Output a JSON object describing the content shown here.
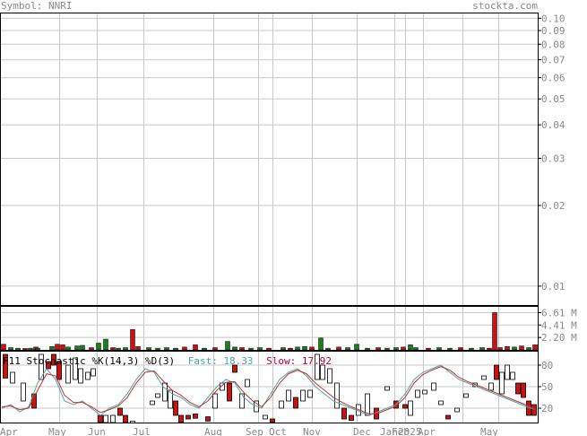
{
  "header": {
    "symbol_label": "Symbol: NNRI",
    "site": "stockta.com"
  },
  "colors": {
    "grid": "#c8c8c8",
    "frame": "#000000",
    "axis_text": "#8a8a8a",
    "up": "#1e7d1e",
    "down": "#cc1111",
    "fast_line": "#4aa6a6",
    "slow_line": "#c03030",
    "fast_label": "#4aa6a6",
    "slow_label": "#b0003a"
  },
  "chart_data": [
    {
      "type": "line",
      "panel": "price",
      "scale": "log",
      "ylim": [
        0.0085,
        0.105
      ],
      "y_ticks": [
        "0.10",
        "0.09",
        "0.08",
        "0.07",
        "0.06",
        "0.05",
        "0.04",
        "0.03",
        "0.02",
        "0.01"
      ],
      "x_ticks": [
        "Apr",
        "May",
        "Jun",
        "Jul",
        "Aug",
        "Sep",
        "Oct",
        "Nov",
        "Dec",
        "Jan",
        "Feb",
        "2025",
        "Apr",
        "May"
      ],
      "grid": true,
      "series": []
    },
    {
      "type": "bar",
      "panel": "volume",
      "y_ticks": [
        "6.61 M",
        "4.41 M",
        "2.20 M"
      ],
      "ylim": [
        0,
        7.8
      ],
      "unit": "M",
      "bars": [
        [
          4,
          1.0,
          "d"
        ],
        [
          12,
          0.4,
          "u"
        ],
        [
          20,
          0.3,
          "u"
        ],
        [
          28,
          0.25,
          "d"
        ],
        [
          34,
          0.3,
          "u"
        ],
        [
          40,
          0.5,
          "d"
        ],
        [
          42,
          0.3,
          "u"
        ],
        [
          58,
          0.6,
          "u"
        ],
        [
          64,
          1.0,
          "d"
        ],
        [
          70,
          0.9,
          "d"
        ],
        [
          76,
          0.5,
          "u"
        ],
        [
          86,
          0.7,
          "u"
        ],
        [
          92,
          0.8,
          "u"
        ],
        [
          102,
          0.4,
          "d"
        ],
        [
          110,
          1.2,
          "u"
        ],
        [
          118,
          1.9,
          "u"
        ],
        [
          126,
          0.4,
          "d"
        ],
        [
          132,
          0.3,
          "u"
        ],
        [
          140,
          0.4,
          "u"
        ],
        [
          148,
          3.6,
          "d"
        ],
        [
          154,
          0.6,
          "d"
        ],
        [
          166,
          0.4,
          "u"
        ],
        [
          176,
          0.3,
          "u"
        ],
        [
          186,
          0.4,
          "u"
        ],
        [
          196,
          0.3,
          "u"
        ],
        [
          206,
          0.5,
          "d"
        ],
        [
          218,
          0.9,
          "d"
        ],
        [
          228,
          0.3,
          "u"
        ],
        [
          240,
          0.4,
          "d"
        ],
        [
          254,
          1.5,
          "u"
        ],
        [
          262,
          0.5,
          "u"
        ],
        [
          270,
          0.4,
          "d"
        ],
        [
          280,
          0.3,
          "u"
        ],
        [
          290,
          0.4,
          "u"
        ],
        [
          300,
          0.3,
          "d"
        ],
        [
          316,
          0.4,
          "u"
        ],
        [
          324,
          0.3,
          "d"
        ],
        [
          332,
          0.5,
          "u"
        ],
        [
          340,
          0.6,
          "u"
        ],
        [
          348,
          0.5,
          "d"
        ],
        [
          358,
          2.1,
          "u"
        ],
        [
          366,
          0.3,
          "u"
        ],
        [
          378,
          0.5,
          "d"
        ],
        [
          388,
          0.4,
          "u"
        ],
        [
          398,
          1.0,
          "u"
        ],
        [
          410,
          0.3,
          "u"
        ],
        [
          422,
          0.4,
          "d"
        ],
        [
          432,
          0.3,
          "u"
        ],
        [
          442,
          0.4,
          "u"
        ],
        [
          450,
          0.5,
          "d"
        ],
        [
          458,
          0.9,
          "u"
        ],
        [
          464,
          0.4,
          "u"
        ],
        [
          478,
          0.3,
          "d"
        ],
        [
          490,
          0.4,
          "u"
        ],
        [
          502,
          0.3,
          "u"
        ],
        [
          514,
          0.4,
          "d"
        ],
        [
          526,
          0.3,
          "u"
        ],
        [
          538,
          0.4,
          "u"
        ],
        [
          546,
          0.3,
          "d"
        ],
        [
          552,
          6.61,
          "d"
        ],
        [
          558,
          0.4,
          "d"
        ],
        [
          566,
          0.6,
          "d"
        ],
        [
          574,
          0.5,
          "u"
        ],
        [
          582,
          0.7,
          "d"
        ],
        [
          590,
          0.4,
          "u"
        ],
        [
          597,
          0.9,
          "d"
        ]
      ]
    },
    {
      "type": "line",
      "panel": "stochastic",
      "title_prefix": "F",
      "title_sym": "11",
      "title": "Stochastic %K(14,3) %D(3)",
      "fast_label": "Fast: 18.33",
      "slow_label": "Slow: 17.92",
      "y_ticks": [
        "80",
        "50",
        "20"
      ],
      "ylim": [
        0,
        100
      ],
      "series": [
        {
          "name": "Fast",
          "x": [
            2,
            12,
            22,
            32,
            42,
            52,
            62,
            72,
            82,
            92,
            102,
            112,
            122,
            132,
            142,
            152,
            162,
            172,
            182,
            192,
            202,
            212,
            222,
            232,
            242,
            252,
            262,
            272,
            282,
            292,
            302,
            312,
            322,
            332,
            342,
            352,
            362,
            372,
            382,
            392,
            402,
            412,
            422,
            432,
            442,
            452,
            462,
            472,
            482,
            492,
            502,
            512,
            522,
            532,
            542,
            552,
            562,
            572,
            582,
            592,
            597
          ],
          "y": [
            20,
            25,
            15,
            22,
            55,
            75,
            60,
            30,
            25,
            30,
            20,
            10,
            20,
            25,
            40,
            60,
            75,
            70,
            50,
            40,
            35,
            25,
            20,
            35,
            50,
            60,
            55,
            35,
            25,
            20,
            40,
            60,
            70,
            75,
            65,
            50,
            40,
            30,
            25,
            20,
            15,
            10,
            15,
            20,
            25,
            40,
            60,
            70,
            75,
            80,
            70,
            60,
            55,
            50,
            45,
            40,
            35,
            30,
            25,
            20,
            18.33
          ]
        },
        {
          "name": "Slow",
          "x": [
            2,
            12,
            22,
            32,
            42,
            52,
            62,
            72,
            82,
            92,
            102,
            112,
            122,
            132,
            142,
            152,
            162,
            172,
            182,
            192,
            202,
            212,
            222,
            232,
            242,
            252,
            262,
            272,
            282,
            292,
            302,
            312,
            322,
            332,
            342,
            352,
            362,
            372,
            382,
            392,
            402,
            412,
            422,
            432,
            442,
            452,
            462,
            472,
            482,
            492,
            502,
            512,
            522,
            532,
            542,
            552,
            562,
            572,
            582,
            592,
            597
          ],
          "y": [
            22,
            23,
            18,
            20,
            45,
            68,
            65,
            38,
            28,
            28,
            22,
            14,
            18,
            23,
            35,
            55,
            70,
            72,
            58,
            45,
            38,
            28,
            22,
            30,
            45,
            56,
            57,
            42,
            30,
            22,
            35,
            55,
            68,
            73,
            68,
            55,
            45,
            35,
            28,
            22,
            17,
            12,
            13,
            18,
            23,
            35,
            55,
            67,
            73,
            78,
            73,
            63,
            57,
            52,
            47,
            42,
            37,
            32,
            27,
            22,
            17.92
          ]
        }
      ],
      "candles": [
        [
          6,
          95,
          62,
          "d"
        ],
        [
          14,
          70,
          55,
          "u"
        ],
        [
          26,
          55,
          30,
          "u"
        ],
        [
          38,
          40,
          20,
          "d"
        ],
        [
          46,
          60,
          95,
          "u"
        ],
        [
          54,
          75,
          85,
          "d"
        ],
        [
          60,
          95,
          80,
          "d"
        ],
        [
          66,
          85,
          60,
          "d"
        ],
        [
          76,
          80,
          55,
          "u"
        ],
        [
          84,
          90,
          60,
          "u"
        ],
        [
          90,
          75,
          55,
          "u"
        ],
        [
          98,
          70,
          60,
          "u"
        ],
        [
          104,
          75,
          65,
          "u"
        ],
        [
          112,
          10,
          0,
          "d"
        ],
        [
          118,
          0,
          10,
          "u"
        ],
        [
          126,
          10,
          0,
          "u"
        ],
        [
          134,
          20,
          10,
          "d"
        ],
        [
          140,
          10,
          0,
          "d"
        ],
        [
          148,
          0,
          2,
          "u"
        ],
        [
          170,
          25,
          30,
          "u"
        ],
        [
          176,
          35,
          40,
          "u"
        ],
        [
          184,
          30,
          55,
          "u"
        ],
        [
          190,
          45,
          20,
          "u"
        ],
        [
          196,
          10,
          30,
          "d"
        ],
        [
          202,
          0,
          10,
          "d"
        ],
        [
          210,
          5,
          10,
          "d"
        ],
        [
          218,
          12,
          6,
          "d"
        ],
        [
          232,
          8,
          2,
          "d"
        ],
        [
          240,
          20,
          40,
          "u"
        ],
        [
          248,
          45,
          55,
          "u"
        ],
        [
          256,
          55,
          30,
          "d"
        ],
        [
          262,
          70,
          80,
          "d"
        ],
        [
          270,
          20,
          40,
          "u"
        ],
        [
          276,
          50,
          60,
          "u"
        ],
        [
          286,
          30,
          15,
          "u"
        ],
        [
          296,
          5,
          10,
          "u"
        ],
        [
          304,
          0,
          5,
          "d"
        ],
        [
          314,
          20,
          30,
          "u"
        ],
        [
          322,
          30,
          45,
          "u"
        ],
        [
          330,
          35,
          20,
          "d"
        ],
        [
          338,
          30,
          45,
          "u"
        ],
        [
          346,
          45,
          35,
          "u"
        ],
        [
          354,
          95,
          60,
          "u"
        ],
        [
          360,
          80,
          60,
          "u"
        ],
        [
          368,
          75,
          55,
          "u"
        ],
        [
          376,
          55,
          20,
          "u"
        ],
        [
          384,
          20,
          5,
          "d"
        ],
        [
          392,
          10,
          3,
          "d"
        ],
        [
          400,
          25,
          10,
          "u"
        ],
        [
          410,
          40,
          10,
          "u"
        ],
        [
          420,
          20,
          5,
          "d"
        ],
        [
          432,
          45,
          50,
          "u"
        ],
        [
          442,
          30,
          20,
          "d"
        ],
        [
          452,
          20,
          25,
          "d"
        ],
        [
          458,
          10,
          30,
          "u"
        ],
        [
          466,
          35,
          45,
          "u"
        ],
        [
          474,
          40,
          45,
          "u"
        ],
        [
          484,
          45,
          55,
          "u"
        ],
        [
          492,
          25,
          30,
          "u"
        ],
        [
          500,
          5,
          10,
          "d"
        ],
        [
          510,
          15,
          20,
          "u"
        ],
        [
          520,
          35,
          40,
          "u"
        ],
        [
          530,
          50,
          55,
          "u"
        ],
        [
          540,
          60,
          65,
          "u"
        ],
        [
          548,
          45,
          55,
          "u"
        ],
        [
          554,
          80,
          60,
          "d"
        ],
        [
          560,
          70,
          40,
          "u"
        ],
        [
          566,
          80,
          60,
          "u"
        ],
        [
          572,
          60,
          70,
          "u"
        ],
        [
          578,
          55,
          40,
          "d"
        ],
        [
          584,
          55,
          35,
          "d"
        ],
        [
          590,
          30,
          10,
          "d"
        ],
        [
          596,
          25,
          10,
          "d"
        ]
      ]
    }
  ]
}
